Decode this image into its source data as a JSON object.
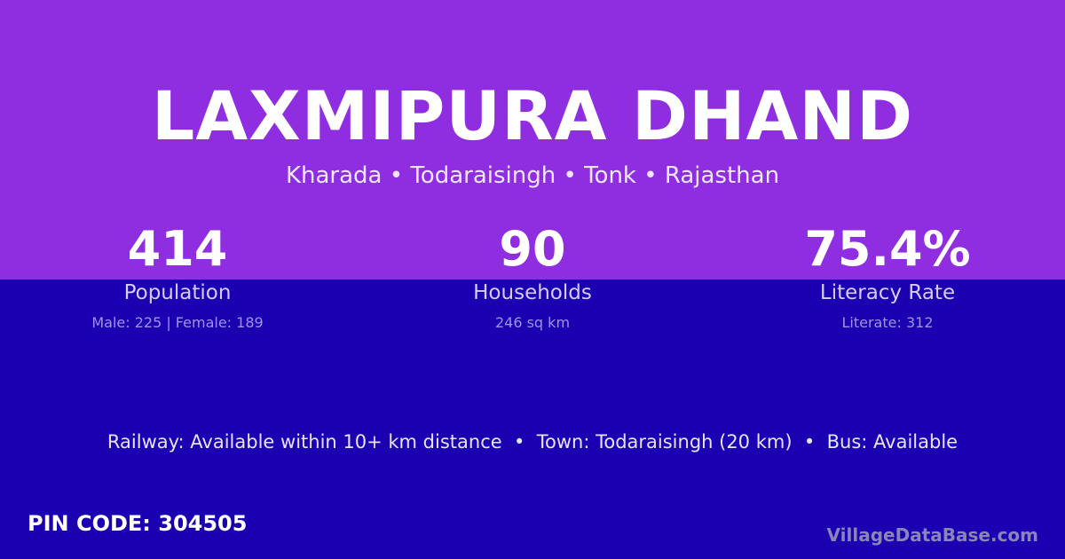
{
  "title": "LAXMIPURA DHAND",
  "subtitle": "Kharada • Todaraisingh • Tonk • Rajasthan",
  "stats": [
    {
      "value": "414",
      "label": "Population",
      "detail": "Male: 225 | Female: 189"
    },
    {
      "value": "90",
      "label": "Households",
      "detail": "246 sq km"
    },
    {
      "value": "75.4%",
      "label": "Literacy Rate",
      "detail": "Literate: 312"
    }
  ],
  "info_line": "Railway: Available within 10+ km distance  •  Town: Todaraisingh (20 km)  •  Bus: Available",
  "pin_code": "PIN CODE: 304505",
  "brand": "VillageDataBase.com",
  "colors": {
    "top_band": "#8f2ee0",
    "background": "#1a00b0"
  }
}
